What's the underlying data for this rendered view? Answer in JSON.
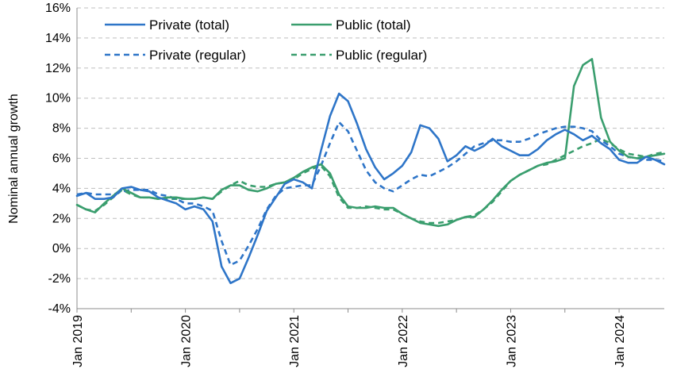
{
  "chart_data": {
    "type": "line",
    "ylabel": "Nominal annual growth",
    "ylim": [
      -4,
      16
    ],
    "ytick_values": [
      -4,
      -2,
      0,
      2,
      4,
      6,
      8,
      10,
      12,
      14,
      16
    ],
    "ytick_labels": [
      "-4%",
      "-2%",
      "0%",
      "2%",
      "4%",
      "6%",
      "8%",
      "10%",
      "12%",
      "14%",
      "16%"
    ],
    "xtick_labels": [
      "Jan 2019",
      "Jan 2020",
      "Jan 2021",
      "Jan 2022",
      "Jan 2023",
      "Jan 2024"
    ],
    "xtick_dates": [
      "2019-01",
      "2020-01",
      "2021-01",
      "2022-01",
      "2023-01",
      "2024-01"
    ],
    "grid": true,
    "legend": "top-left",
    "x": [
      "2019-01",
      "2019-02",
      "2019-03",
      "2019-04",
      "2019-05",
      "2019-06",
      "2019-07",
      "2019-08",
      "2019-09",
      "2019-10",
      "2019-11",
      "2019-12",
      "2020-01",
      "2020-02",
      "2020-03",
      "2020-04",
      "2020-05",
      "2020-06",
      "2020-07",
      "2020-08",
      "2020-09",
      "2020-10",
      "2020-11",
      "2020-12",
      "2021-01",
      "2021-02",
      "2021-03",
      "2021-04",
      "2021-05",
      "2021-06",
      "2021-07",
      "2021-08",
      "2021-09",
      "2021-10",
      "2021-11",
      "2021-12",
      "2022-01",
      "2022-02",
      "2022-03",
      "2022-04",
      "2022-05",
      "2022-06",
      "2022-07",
      "2022-08",
      "2022-09",
      "2022-10",
      "2022-11",
      "2022-12",
      "2023-01",
      "2023-02",
      "2023-03",
      "2023-04",
      "2023-05",
      "2023-06",
      "2023-07",
      "2023-08",
      "2023-09",
      "2023-10",
      "2023-11",
      "2023-12",
      "2024-01",
      "2024-02",
      "2024-03",
      "2024-04",
      "2024-05",
      "2024-06"
    ],
    "series": [
      {
        "name": "Private (total)",
        "color": "#2e75c8",
        "dash": false,
        "values": [
          3.5,
          3.7,
          3.3,
          3.3,
          3.4,
          4.0,
          4.1,
          3.9,
          3.8,
          3.4,
          3.2,
          3.0,
          2.6,
          2.8,
          2.6,
          1.8,
          -1.2,
          -2.3,
          -2.0,
          -0.6,
          0.9,
          2.5,
          3.4,
          4.3,
          4.6,
          4.4,
          4.0,
          6.5,
          8.8,
          10.3,
          9.8,
          8.3,
          6.6,
          5.4,
          4.6,
          5.0,
          5.5,
          6.4,
          8.2,
          8.0,
          7.3,
          5.8,
          6.2,
          6.8,
          6.5,
          6.8,
          7.3,
          6.8,
          6.5,
          6.2,
          6.2,
          6.6,
          7.2,
          7.6,
          7.9,
          7.6,
          7.2,
          7.5,
          7.0,
          6.6,
          5.9,
          5.7,
          5.7,
          6.1,
          5.9,
          5.6
        ]
      },
      {
        "name": "Public (total)",
        "color": "#3a9e6e",
        "dash": false,
        "values": [
          2.9,
          2.6,
          2.4,
          3.0,
          3.5,
          4.0,
          3.7,
          3.4,
          3.4,
          3.3,
          3.4,
          3.4,
          3.3,
          3.3,
          3.4,
          3.3,
          3.9,
          4.2,
          4.2,
          3.9,
          3.8,
          4.0,
          4.3,
          4.4,
          4.7,
          5.1,
          5.4,
          5.6,
          5.0,
          3.6,
          2.8,
          2.7,
          2.7,
          2.8,
          2.7,
          2.7,
          2.3,
          2.0,
          1.7,
          1.6,
          1.5,
          1.6,
          1.9,
          2.1,
          2.1,
          2.6,
          3.2,
          3.9,
          4.5,
          4.9,
          5.2,
          5.5,
          5.7,
          5.8,
          6.0,
          10.8,
          12.2,
          12.6,
          8.7,
          7.1,
          6.5,
          6.1,
          6.0,
          6.1,
          6.2,
          6.3
        ]
      },
      {
        "name": "Private (regular)",
        "color": "#2e75c8",
        "dash": true,
        "values": [
          3.6,
          3.7,
          3.6,
          3.6,
          3.6,
          3.8,
          3.9,
          3.9,
          3.9,
          3.6,
          3.5,
          3.3,
          3.0,
          3.0,
          2.8,
          2.5,
          0.5,
          -1.1,
          -0.8,
          0.2,
          1.3,
          2.6,
          3.5,
          4.0,
          4.1,
          4.2,
          4.2,
          5.5,
          7.0,
          8.4,
          7.8,
          6.5,
          5.2,
          4.4,
          4.0,
          3.8,
          4.2,
          4.6,
          4.9,
          4.8,
          5.1,
          5.4,
          5.8,
          6.3,
          6.8,
          7.0,
          7.2,
          7.2,
          7.1,
          7.1,
          7.3,
          7.6,
          7.8,
          8.0,
          8.1,
          8.1,
          8.0,
          7.8,
          7.2,
          6.8,
          6.3,
          6.1,
          6.0,
          5.9,
          5.9,
          5.8
        ]
      },
      {
        "name": "Public (regular)",
        "color": "#3a9e6e",
        "dash": true,
        "values": [
          2.9,
          2.6,
          2.5,
          2.9,
          3.4,
          3.9,
          3.6,
          3.4,
          3.4,
          3.3,
          3.3,
          3.3,
          3.3,
          3.3,
          3.4,
          3.3,
          3.8,
          4.2,
          4.5,
          4.2,
          4.1,
          4.1,
          4.3,
          4.4,
          4.6,
          5.0,
          5.3,
          5.5,
          4.8,
          3.4,
          2.7,
          2.7,
          2.8,
          2.7,
          2.6,
          2.6,
          2.3,
          2.0,
          1.8,
          1.7,
          1.7,
          1.8,
          1.9,
          2.1,
          2.2,
          2.6,
          3.1,
          3.8,
          4.5,
          4.9,
          5.2,
          5.5,
          5.6,
          5.9,
          6.2,
          6.5,
          6.8,
          7.0,
          7.3,
          7.0,
          6.6,
          6.3,
          6.2,
          6.1,
          6.3,
          6.4
        ]
      }
    ]
  }
}
